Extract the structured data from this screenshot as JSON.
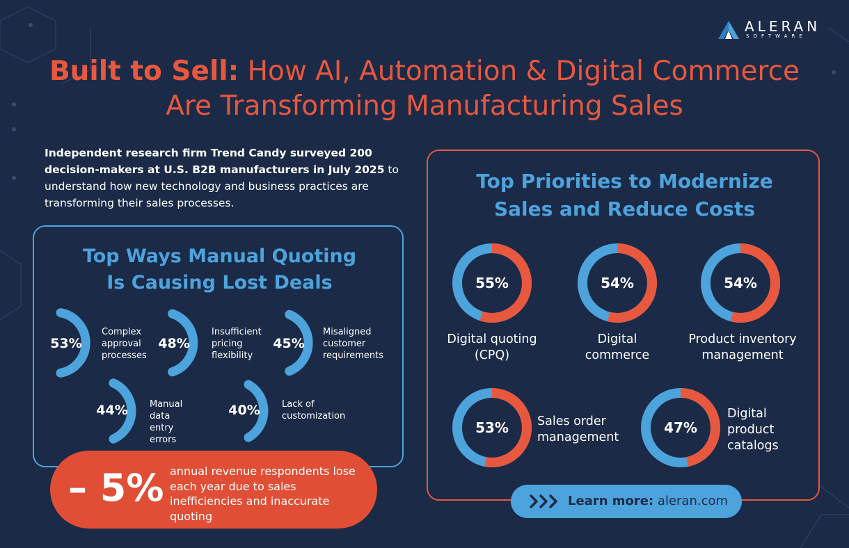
{
  "brand": {
    "name": "ALERAN",
    "sub": "SOFTWARE",
    "colors": {
      "background": "#1b2a47",
      "accent_orange": "#e8583e",
      "accent_blue": "#4da3dc",
      "ring_base": "#4da3dc"
    }
  },
  "title": {
    "bold": "Built to Sell:",
    "line1_rest": " How AI, Automation & Digital Commerce",
    "line2": "Are Transforming Manufacturing Sales"
  },
  "intro": {
    "bold": "Independent research firm Trend Candy surveyed 200 decision-makers at U.S. B2B manufacturers in July 2025",
    "rest": " to understand how new technology and business practices are transforming their sales processes."
  },
  "chart_data": [
    {
      "type": "bar",
      "title": "Top Ways Manual Quoting Is Causing Lost Deals",
      "title_lines": [
        "Top Ways Manual Quoting",
        "Is Causing Lost Deals"
      ],
      "categories": [
        "Complex approval processes",
        "Insufficient pricing flexibility",
        "Misaligned customer requirements",
        "Manual data entry errors",
        "Lack of customization"
      ],
      "labels": [
        [
          "Complex",
          "approval",
          "processes"
        ],
        [
          "Insufficient",
          "pricing",
          "flexibility"
        ],
        [
          "Misaligned",
          "customer",
          "requirements"
        ],
        [
          "Manual data",
          "entry errors"
        ],
        [
          "Lack of",
          "customization"
        ]
      ],
      "values": [
        53,
        48,
        45,
        44,
        40
      ],
      "display": [
        "53%",
        "48%",
        "45%",
        "44%",
        "40%"
      ],
      "unit": "%"
    },
    {
      "type": "pie",
      "title": "Top Priorities to Modernize Sales and Reduce Costs",
      "title_lines": [
        "Top Priorities to Modernize",
        "Sales and Reduce Costs"
      ],
      "categories": [
        "Digital quoting (CPQ)",
        "Digital commerce",
        "Product inventory management",
        "Sales order management",
        "Digital product catalogs"
      ],
      "labels": [
        [
          "Digital quoting",
          "(CPQ)"
        ],
        [
          "Digital",
          "commerce"
        ],
        [
          "Product inventory",
          "management"
        ],
        [
          "Sales order",
          "management"
        ],
        [
          "Digital",
          "product",
          "catalogs"
        ]
      ],
      "values": [
        55,
        54,
        54,
        53,
        47
      ],
      "display": [
        "55%",
        "54%",
        "54%",
        "53%",
        "47%"
      ],
      "unit": "%"
    }
  ],
  "callout": {
    "value": "– 5%",
    "text": "annual revenue respondents lose each year due to sales inefficiencies and inaccurate quoting"
  },
  "learn_more": {
    "label": "Learn more:",
    "url": "aleran.com"
  }
}
